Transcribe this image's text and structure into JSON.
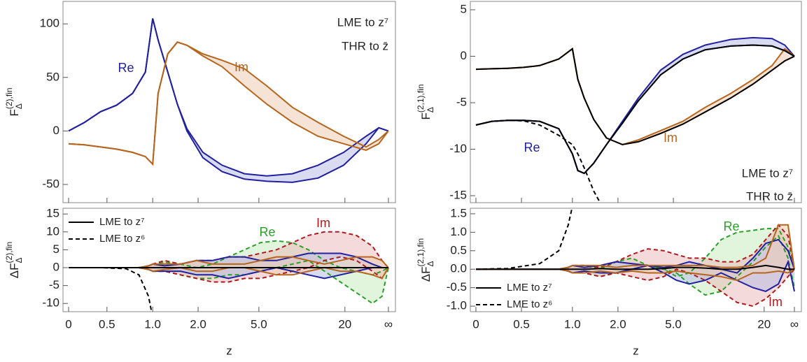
{
  "chart_data": [
    {
      "type": "line",
      "ylabel": {
        "base": "F",
        "sub": "Δ",
        "sup": "(2),fin"
      },
      "xlim": [
        -0.0175,
        1.022
      ],
      "xticks": [
        0,
        0.12,
        0.263,
        0.405,
        0.595,
        0.864,
        1
      ],
      "ylim": [
        -67,
        121
      ],
      "yticks": [
        -50,
        0,
        50,
        100
      ],
      "x": [
        0,
        0.05,
        0.1,
        0.15,
        0.2,
        0.24,
        0.263,
        0.28,
        0.31,
        0.34,
        0.37,
        0.42,
        0.48,
        0.55,
        0.62,
        0.7,
        0.78,
        0.86,
        0.93,
        0.97,
        1
      ],
      "series": [
        {
          "name": "Re",
          "color": "#2020a0",
          "fill": "#b9bde6",
          "values": [
            0,
            8,
            18,
            24,
            35,
            55,
            105,
            85,
            55,
            25,
            0,
            -25,
            -38,
            -45,
            -47,
            -48,
            -44,
            -32,
            -12,
            3,
            0
          ],
          "upper": [
            0,
            8,
            18,
            24,
            35,
            55,
            105,
            85,
            55,
            25,
            2,
            -20,
            -32,
            -40,
            -42,
            -40,
            -32,
            -20,
            -5,
            3,
            0
          ]
        },
        {
          "name": "Im",
          "color": "#b5651d",
          "fill": "#edcdb4",
          "values": [
            -12,
            -13,
            -15,
            -17,
            -20,
            -24,
            -31,
            35,
            72,
            83,
            80,
            70,
            60,
            42,
            25,
            8,
            -5,
            -12,
            -18,
            -12,
            0
          ],
          "upper": [
            -12,
            -13,
            -15,
            -17,
            -20,
            -24,
            -31,
            35,
            72,
            83,
            80,
            72,
            66,
            58,
            42,
            22,
            8,
            -5,
            -15,
            -8,
            0
          ]
        }
      ],
      "annotations": [
        "LME to z⁷",
        "THR to z̄"
      ]
    },
    {
      "type": "line",
      "ylabel": {
        "base": "ΔF",
        "sub": "Δ",
        "sup": "(2),fin"
      },
      "xlabel": "z",
      "xlim": [
        -0.0175,
        1.022
      ],
      "xticks": [
        0,
        {
          "value": 0.12,
          "label": "0.5"
        },
        {
          "value": 0.263,
          "label": "1.0"
        },
        {
          "value": 0.405,
          "label": "2.0"
        },
        {
          "value": 0.595,
          "label": "5.0"
        },
        {
          "value": 0.864,
          "label": "20"
        },
        {
          "value": 1,
          "label": "∞"
        }
      ],
      "ylim": [
        -12.3,
        16.6
      ],
      "yticks": [
        -10,
        -5,
        0,
        5,
        10,
        15
      ],
      "legend": "top-left",
      "x": [
        0,
        0.1,
        0.18,
        0.22,
        0.25,
        0.263,
        0.3,
        0.35,
        0.4,
        0.45,
        0.5,
        0.55,
        0.6,
        0.65,
        0.7,
        0.75,
        0.8,
        0.85,
        0.9,
        0.95,
        0.98,
        1
      ],
      "series": [
        {
          "name": "Re",
          "color": "#2aa02a",
          "fill": "#c7ecbf",
          "dash": true,
          "values": [
            0,
            0,
            0,
            0,
            -0.5,
            -1,
            -1,
            -2,
            -3,
            -3,
            -2,
            -2,
            -1,
            0,
            1,
            2,
            -1,
            -4,
            -7,
            -10,
            -8,
            0
          ],
          "upper": [
            0,
            0,
            0,
            0,
            0.5,
            1,
            1.5,
            1,
            0,
            1,
            3,
            5,
            7,
            7.5,
            7,
            5,
            2,
            0,
            -1,
            -2,
            -1,
            0
          ]
        },
        {
          "name": "Im",
          "color": "#b0191e",
          "fill": "#ebbcbc",
          "dash": true,
          "values": [
            0,
            0,
            0,
            0,
            -0.5,
            -1,
            -1,
            -2,
            -3,
            -4,
            -4,
            -3,
            -3,
            -2,
            -1,
            0,
            2,
            3,
            2,
            -1,
            -3,
            0
          ],
          "upper": [
            0,
            0,
            0,
            0,
            0.5,
            1,
            2,
            1,
            2,
            2,
            3,
            3,
            4,
            5,
            7,
            9,
            10,
            10,
            9,
            6,
            2,
            0
          ]
        },
        {
          "color": "#2020a0",
          "fill": "#b9bde6",
          "values": [
            0,
            0,
            0,
            0,
            -0.5,
            -1,
            -1,
            -1,
            -2,
            -2,
            -3,
            -2,
            -1,
            0,
            -1,
            -2,
            -3,
            -2,
            -1,
            0,
            0,
            0
          ],
          "upper": [
            0,
            0,
            0,
            0,
            0.5,
            1,
            0.5,
            1,
            2,
            2,
            3,
            3,
            2,
            2,
            3,
            4,
            4,
            4,
            3,
            1,
            0,
            0
          ]
        },
        {
          "color": "#b5651d",
          "fill": "#edcdb4",
          "values": [
            0,
            0,
            0,
            0,
            -0.5,
            -1,
            -0.5,
            0,
            -1,
            -1,
            0,
            0,
            -1,
            -2,
            -2,
            -1,
            0,
            -1,
            -1,
            -2,
            -3,
            0
          ],
          "upper": [
            0,
            0,
            0,
            0,
            0.5,
            1,
            1,
            1,
            2,
            1,
            1,
            1,
            2,
            3,
            3,
            2,
            1,
            2,
            3,
            3,
            2,
            0
          ]
        },
        {
          "name": "LME to z⁷",
          "color": "#000000",
          "values": [
            0,
            0,
            0,
            0,
            0,
            0,
            0,
            0,
            0,
            0,
            0,
            0,
            0,
            0,
            0,
            0,
            0,
            0,
            0,
            0,
            0,
            0
          ]
        },
        {
          "name": "LME to z⁶",
          "color": "#000000",
          "dash": true,
          "values": [
            0,
            0,
            -0.3,
            -2,
            -8,
            -14,
            null,
            null,
            null,
            null,
            null,
            null,
            null,
            null,
            null,
            null,
            null,
            null,
            null,
            null,
            null,
            null
          ]
        }
      ]
    },
    {
      "type": "line",
      "ylabel": {
        "base": "F",
        "sub": "Δ",
        "sup": "(2,1),fin"
      },
      "xlim": [
        -0.0175,
        1.022
      ],
      "xticks": [
        0,
        0.143,
        0.303,
        0.446,
        0.62,
        0.905,
        1
      ],
      "ylim": [
        -15.75,
        5.9
      ],
      "yticks": [
        -15,
        -10,
        -5,
        0,
        5
      ],
      "x": [
        0,
        0.05,
        0.1,
        0.15,
        0.2,
        0.26,
        0.303,
        0.32,
        0.34,
        0.37,
        0.41,
        0.46,
        0.51,
        0.58,
        0.65,
        0.72,
        0.8,
        0.87,
        0.93,
        0.97,
        1
      ],
      "series": [
        {
          "name": "Re",
          "color": "#2020a0",
          "fill": "#b9bde6",
          "values": [
            -7.4,
            -7.0,
            -6.9,
            -6.9,
            -7.0,
            -7.8,
            -10.5,
            -12.3,
            -12.6,
            -11.5,
            -9.5,
            -7.2,
            -4.8,
            -2,
            -0.3,
            0.7,
            1.1,
            1.2,
            1.1,
            0.6,
            0
          ],
          "upper": [
            -7.4,
            -7.0,
            -6.9,
            -6.9,
            -7.0,
            -7.8,
            -10.5,
            -12.3,
            -12.6,
            -11.5,
            -9.5,
            -7,
            -4.5,
            -1.5,
            0.2,
            1.2,
            1.8,
            2.0,
            1.9,
            1.2,
            0
          ]
        },
        {
          "name": "Im",
          "color": "#b5651d",
          "fill": "#edcdb4",
          "values": [
            -1.4,
            -1.35,
            -1.3,
            -1.2,
            -1.0,
            -0.3,
            0.8,
            -2.5,
            -4.5,
            -6.8,
            -8.8,
            -9.5,
            -9.2,
            -8.3,
            -7.3,
            -6,
            -4.5,
            -3,
            -1.5,
            -0.5,
            0
          ],
          "upper": [
            -1.4,
            -1.35,
            -1.3,
            -1.2,
            -1.0,
            -0.3,
            0.8,
            -2.5,
            -4.5,
            -6.8,
            -8.8,
            -9.5,
            -9.0,
            -8.0,
            -7.0,
            -5.5,
            -4.0,
            -2.5,
            -1,
            0.8,
            0
          ]
        },
        {
          "color": "#000000",
          "values": [
            -7.4,
            -7.0,
            -6.9,
            -6.9,
            -7.0,
            -7.8,
            -10.5,
            -12.3,
            -12.6,
            -11.5,
            -9.5,
            -7.2,
            -4.8,
            -2,
            -0.3,
            0.7,
            1.1,
            1.2,
            1.1,
            0.6,
            0
          ]
        },
        {
          "color": "#000000",
          "values": [
            -1.4,
            -1.35,
            -1.3,
            -1.2,
            -1.0,
            -0.3,
            0.8,
            -2.5,
            -4.5,
            -6.8,
            -8.8,
            -9.5,
            -9.2,
            -8.3,
            -7.3,
            -6,
            -4.5,
            -3,
            -1.5,
            -0.5,
            0
          ]
        },
        {
          "color": "#000000",
          "dash": true,
          "values": [
            -7.4,
            -7.0,
            -6.9,
            -6.95,
            -7.4,
            -8.5,
            -9.5,
            -10.5,
            -12,
            -14.5,
            -17,
            null,
            null,
            null,
            null,
            null,
            null,
            null,
            null,
            null,
            null
          ]
        }
      ],
      "annotations": [
        "LME to z⁷",
        "THR to z̄"
      ]
    },
    {
      "type": "line",
      "ylabel": {
        "base": "ΔF",
        "sub": "Δ",
        "sup": "(2,1),fin"
      },
      "xlabel": "z",
      "xlim": [
        -0.0175,
        1.022
      ],
      "xticks": [
        0,
        {
          "value": 0.143,
          "label": "0.5"
        },
        {
          "value": 0.303,
          "label": "1.0"
        },
        {
          "value": 0.446,
          "label": "2.0"
        },
        {
          "value": 0.62,
          "label": "5.0"
        },
        {
          "value": 0.905,
          "label": "20"
        },
        {
          "value": 1,
          "label": "∞"
        }
      ],
      "ylim": [
        -1.15,
        1.65
      ],
      "yticks": [
        {
          "value": -1,
          "label": "-1.0"
        },
        -0.5,
        {
          "value": 0,
          "label": "0.0"
        },
        0.5,
        {
          "value": 1,
          "label": "1.0"
        },
        1.5
      ],
      "legend": "bottom-left",
      "x": [
        0,
        0.1,
        0.2,
        0.26,
        0.29,
        0.303,
        0.34,
        0.39,
        0.44,
        0.49,
        0.54,
        0.59,
        0.63,
        0.67,
        0.72,
        0.77,
        0.82,
        0.87,
        0.91,
        0.95,
        0.98,
        1
      ],
      "series": [
        {
          "name": "Re",
          "color": "#2aa02a",
          "fill": "#c7ecbf",
          "dash": true,
          "values": [
            0,
            0,
            0,
            0,
            -0.05,
            -0.1,
            -0.1,
            -0.2,
            -0.1,
            0,
            0.1,
            0,
            -0.1,
            -0.4,
            -0.7,
            -0.6,
            -0.2,
            0.2,
            0.6,
            0.9,
            0.3,
            -0.5
          ],
          "upper": [
            0,
            0,
            0,
            0,
            0.05,
            0.1,
            0.1,
            0,
            0.2,
            0.3,
            0.1,
            0,
            -0.2,
            -0.1,
            0.3,
            0.8,
            1.0,
            1.05,
            1.1,
            1.1,
            0.6,
            0
          ]
        },
        {
          "name": "Im",
          "color": "#b0191e",
          "fill": "#ebbcbc",
          "dash": true,
          "values": [
            0,
            0,
            0,
            0,
            -0.05,
            -0.1,
            -0.1,
            -0.2,
            -0.1,
            -0.2,
            -0.3,
            -0.2,
            0,
            -0.1,
            -0.3,
            -0.6,
            -0.9,
            -1.0,
            -0.8,
            -0.5,
            -0.2,
            0
          ],
          "upper": [
            0,
            0,
            0,
            0,
            0.05,
            0.1,
            0.1,
            0.05,
            0.2,
            0.4,
            0.55,
            0.5,
            0.4,
            0.3,
            0.3,
            0.2,
            0.2,
            0.4,
            0.8,
            1.2,
            0.9,
            0
          ]
        },
        {
          "color": "#2020a0",
          "fill": "#b9bde6",
          "values": [
            0,
            0,
            0,
            0,
            -0.05,
            -0.1,
            -0.05,
            -0.1,
            -0.1,
            0,
            0.1,
            -0.1,
            -0.3,
            -0.4,
            -0.3,
            -0.1,
            -0.3,
            -0.5,
            -0.6,
            -0.4,
            0.2,
            -0.6
          ],
          "upper": [
            0,
            0,
            0,
            0,
            0.05,
            0.1,
            0.05,
            0.1,
            0.2,
            0.15,
            0.1,
            0.05,
            0.1,
            0.2,
            0.1,
            0,
            -0.1,
            0.3,
            0.7,
            0.8,
            0.5,
            0
          ]
        },
        {
          "color": "#b5651d",
          "fill": "#edcdb4",
          "values": [
            0,
            0,
            0,
            0,
            -0.05,
            -0.1,
            -0.1,
            -0.05,
            -0.1,
            -0.05,
            -0.1,
            -0.1,
            -0.05,
            -0.1,
            -0.15,
            -0.2,
            -0.3,
            -0.1,
            -0.1,
            -0.05,
            -0.1,
            0
          ],
          "upper": [
            0,
            0,
            0,
            0,
            0.05,
            0.1,
            0.1,
            0.1,
            0.05,
            0.1,
            0.1,
            0.1,
            0.1,
            0.1,
            0.1,
            0.05,
            0.05,
            0.1,
            0.3,
            1.2,
            1.2,
            0
          ]
        },
        {
          "name": "LME to z⁷",
          "color": "#000000",
          "values": [
            0,
            0,
            0,
            0,
            0,
            0,
            0,
            0.02,
            0,
            0,
            0,
            0.02,
            0.05,
            0.05,
            0.03,
            0,
            0,
            0.05,
            0.1,
            0.05,
            0,
            0
          ]
        },
        {
          "name": "LME to z⁶",
          "color": "#000000",
          "dash": true,
          "values": [
            0,
            0.02,
            0.15,
            0.5,
            1.2,
            1.7,
            null,
            null,
            null,
            null,
            null,
            null,
            null,
            null,
            null,
            null,
            null,
            null,
            null,
            null,
            null,
            null
          ]
        }
      ]
    }
  ]
}
